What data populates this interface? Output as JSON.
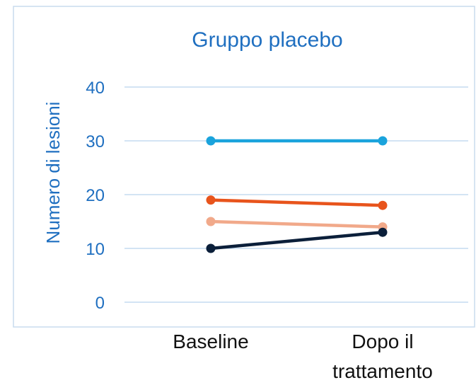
{
  "chart_data": {
    "type": "line",
    "title": "Gruppo placebo",
    "xlabel": "",
    "ylabel": "Numero di lesioni",
    "categories": [
      "Baseline",
      "Dopo il trattamento"
    ],
    "category_lines": [
      [
        "Baseline"
      ],
      [
        "Dopo il",
        "trattamento"
      ]
    ],
    "ylim": [
      0,
      40
    ],
    "yticks": [
      "0",
      "10",
      "20",
      "30",
      "40"
    ],
    "grid": true,
    "series": [
      {
        "values": [
          30,
          30
        ],
        "color": "#1aa3dc"
      },
      {
        "values": [
          19,
          18
        ],
        "color": "#e8541c"
      },
      {
        "values": [
          15,
          14
        ],
        "color": "#f1a98a"
      },
      {
        "values": [
          10,
          13
        ],
        "color": "#0b1f3a"
      }
    ]
  }
}
